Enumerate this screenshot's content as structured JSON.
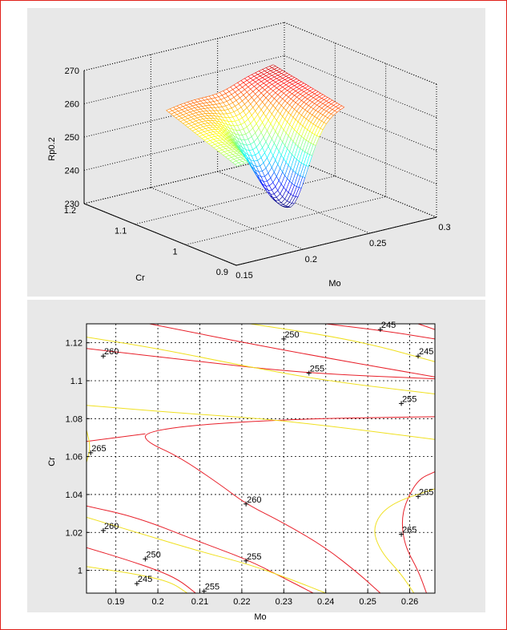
{
  "chart_data": [
    {
      "type": "surface",
      "title": "",
      "xlabel": "Mo",
      "ylabel": "Cr",
      "zlabel": "Rp0.2",
      "x_ticks": [
        "0.15",
        "0.2",
        "0.25",
        "0.3"
      ],
      "y_ticks": [
        "0.9",
        "1",
        "1.1",
        "1.2"
      ],
      "z_ticks": [
        "230",
        "240",
        "250",
        "260",
        "270"
      ],
      "xlim": [
        0.15,
        0.3
      ],
      "ylim": [
        0.9,
        1.2
      ],
      "zlim": [
        230,
        270
      ],
      "grid": true,
      "colormap": "jet",
      "x_range": [
        0.185,
        0.265
      ],
      "y_range": [
        0.99,
        1.13
      ],
      "z_range": [
        235,
        267
      ],
      "surface_samples": [
        {
          "mo": 0.185,
          "cr": 0.99,
          "rp": 250
        },
        {
          "mo": 0.185,
          "cr": 1.13,
          "rp": 258
        },
        {
          "mo": 0.265,
          "cr": 0.99,
          "rp": 259
        },
        {
          "mo": 0.265,
          "cr": 1.13,
          "rp": 263
        },
        {
          "mo": 0.225,
          "cr": 1.06,
          "rp": 236
        }
      ]
    },
    {
      "type": "contour",
      "title": "",
      "xlabel": "Mo",
      "ylabel": "Cr",
      "x_ticks": [
        "0.19",
        "0.2",
        "0.21",
        "0.22",
        "0.23",
        "0.24",
        "0.25",
        "0.26"
      ],
      "y_ticks": [
        "1",
        "1.02",
        "1.04",
        "1.06",
        "1.08",
        "1.1",
        "1.12"
      ],
      "xlim": [
        0.183,
        0.266
      ],
      "ylim": [
        0.988,
        1.13
      ],
      "grid": true,
      "line_colors": {
        "red": "#e8202a",
        "yellow": "#f0e020"
      },
      "labels": [
        {
          "text": "260",
          "x": 0.187,
          "y": 1.113
        },
        {
          "text": "250",
          "x": 0.23,
          "y": 1.122
        },
        {
          "text": "245",
          "x": 0.253,
          "y": 1.127
        },
        {
          "text": "245",
          "x": 0.262,
          "y": 1.113
        },
        {
          "text": "255",
          "x": 0.236,
          "y": 1.104
        },
        {
          "text": "255",
          "x": 0.258,
          "y": 1.088
        },
        {
          "text": "265",
          "x": 0.184,
          "y": 1.062
        },
        {
          "text": "260",
          "x": 0.221,
          "y": 1.035
        },
        {
          "text": "265",
          "x": 0.262,
          "y": 1.039
        },
        {
          "text": "265",
          "x": 0.258,
          "y": 1.019
        },
        {
          "text": "260",
          "x": 0.187,
          "y": 1.021
        },
        {
          "text": "250",
          "x": 0.197,
          "y": 1.006
        },
        {
          "text": "255",
          "x": 0.221,
          "y": 1.005
        },
        {
          "text": "245",
          "x": 0.195,
          "y": 0.993
        },
        {
          "text": "255",
          "x": 0.211,
          "y": 0.989
        }
      ],
      "contours": [
        {
          "color": "red",
          "points": [
            [
              0.198,
              1.13
            ],
            [
              0.23,
              1.116
            ],
            [
              0.266,
              1.102
            ]
          ]
        },
        {
          "color": "red",
          "points": [
            [
              0.183,
              1.117
            ],
            [
              0.21,
              1.11
            ],
            [
              0.235,
              1.104
            ],
            [
              0.266,
              1.101
            ]
          ]
        },
        {
          "color": "red",
          "points": [
            [
              0.24,
              1.13
            ],
            [
              0.255,
              1.126
            ],
            [
              0.266,
              1.122
            ]
          ]
        },
        {
          "color": "red",
          "points": [
            [
              0.262,
              1.13
            ],
            [
              0.266,
              1.127
            ]
          ]
        },
        {
          "color": "red",
          "points": [
            [
              0.183,
              1.068
            ],
            [
              0.197,
              1.072
            ]
          ]
        },
        {
          "color": "red",
          "points": [
            [
              0.266,
              1.081
            ],
            [
              0.235,
              1.08
            ],
            [
              0.21,
              1.077
            ],
            [
              0.197,
              1.073
            ],
            [
              0.197,
              1.068
            ],
            [
              0.205,
              1.06
            ],
            [
              0.215,
              1.045
            ],
            [
              0.221,
              1.035
            ],
            [
              0.23,
              1.025
            ],
            [
              0.24,
              1.012
            ],
            [
              0.248,
              0.998
            ],
            [
              0.253,
              0.988
            ]
          ]
        },
        {
          "color": "red",
          "points": [
            [
              0.266,
              1.052
            ],
            [
              0.262,
              1.048
            ],
            [
              0.259,
              1.036
            ],
            [
              0.258,
              1.025
            ],
            [
              0.259,
              1.012
            ],
            [
              0.262,
              1.0
            ],
            [
              0.264,
              0.988
            ]
          ]
        },
        {
          "color": "red",
          "points": [
            [
              0.183,
              1.034
            ],
            [
              0.195,
              1.028
            ],
            [
              0.21,
              1.015
            ],
            [
              0.221,
              1.006
            ],
            [
              0.23,
              0.996
            ],
            [
              0.237,
              0.988
            ]
          ]
        },
        {
          "color": "red",
          "points": [
            [
              0.183,
              1.012
            ],
            [
              0.192,
              1.006
            ],
            [
              0.2,
              1.0
            ],
            [
              0.205,
              0.995
            ],
            [
              0.209,
              0.988
            ]
          ]
        },
        {
          "color": "yellow",
          "points": [
            [
              0.183,
              1.123
            ],
            [
              0.2,
              1.117
            ],
            [
              0.22,
              1.108
            ],
            [
              0.24,
              1.1
            ],
            [
              0.266,
              1.093
            ]
          ]
        },
        {
          "color": "yellow",
          "points": [
            [
              0.222,
              1.13
            ],
            [
              0.24,
              1.124
            ],
            [
              0.253,
              1.118
            ],
            [
              0.266,
              1.11
            ]
          ]
        },
        {
          "color": "yellow",
          "points": [
            [
              0.183,
              1.087
            ],
            [
              0.205,
              1.083
            ],
            [
              0.225,
              1.08
            ],
            [
              0.245,
              1.075
            ],
            [
              0.266,
              1.069
            ]
          ]
        },
        {
          "color": "yellow",
          "points": [
            [
              0.183,
              1.074
            ],
            [
              0.184,
              1.065
            ],
            [
              0.183,
              1.057
            ]
          ]
        },
        {
          "color": "yellow",
          "points": [
            [
              0.266,
              1.043
            ],
            [
              0.255,
              1.035
            ],
            [
              0.251,
              1.023
            ],
            [
              0.253,
              1.01
            ],
            [
              0.258,
              0.998
            ],
            [
              0.261,
              0.988
            ]
          ]
        },
        {
          "color": "yellow",
          "points": [
            [
              0.183,
              1.028
            ],
            [
              0.195,
              1.02
            ],
            [
              0.21,
              1.01
            ],
            [
              0.222,
              1.003
            ],
            [
              0.232,
              0.995
            ],
            [
              0.24,
              0.988
            ]
          ]
        },
        {
          "color": "yellow",
          "points": [
            [
              0.183,
              1.002
            ],
            [
              0.195,
              0.998
            ],
            [
              0.203,
              0.994
            ],
            [
              0.207,
              0.988
            ]
          ]
        }
      ]
    }
  ]
}
